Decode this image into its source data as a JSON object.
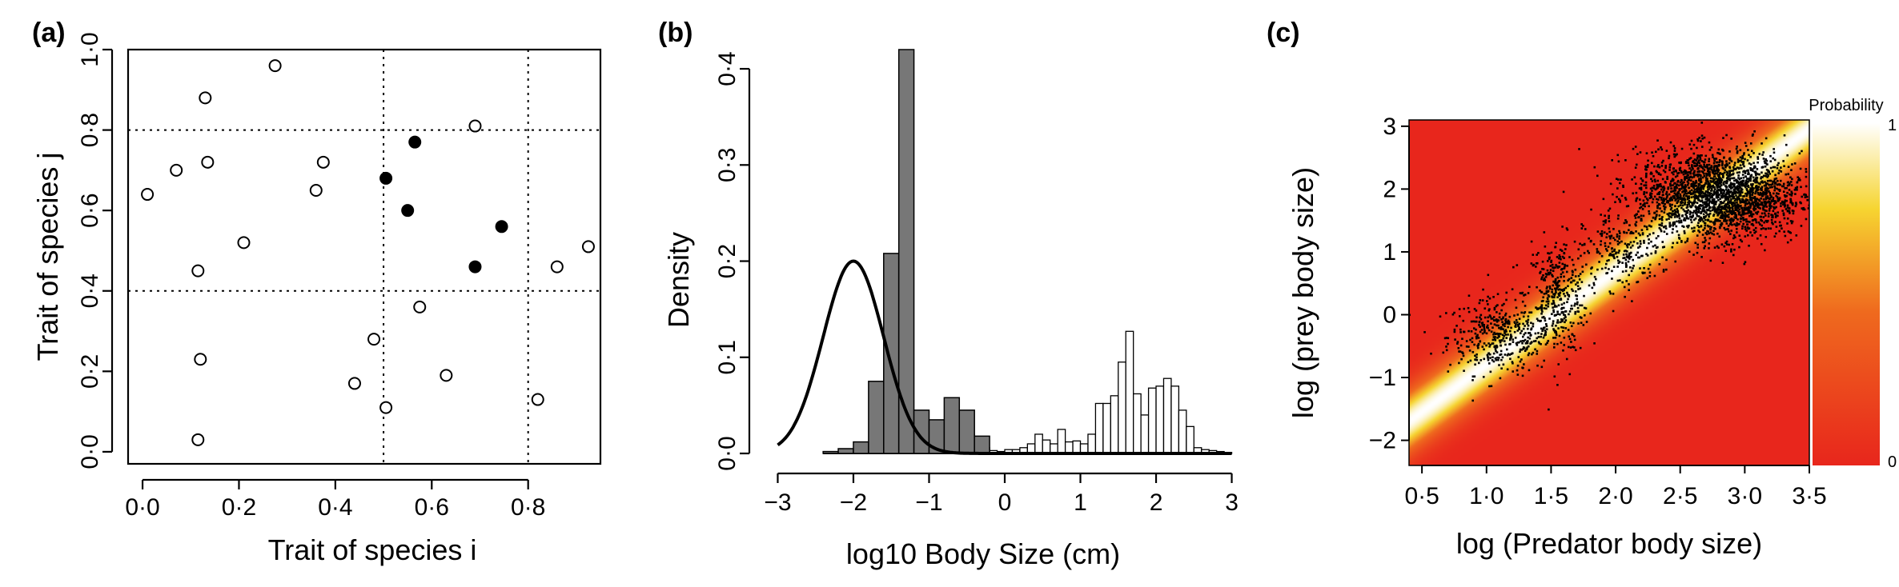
{
  "colors": {
    "black": "#000000",
    "bar_gray": "#777777",
    "heat_low": "#e8261c",
    "heat_mid": "#f6d531",
    "heat_high": "#ffffff"
  },
  "panels": {
    "a": {
      "label": "(a)",
      "chart_data": {
        "type": "scatter",
        "xlabel": "Trait of species i",
        "ylabel": "Trait of species j",
        "xlim": [
          -0.03,
          0.95
        ],
        "ylim": [
          -0.03,
          1.0
        ],
        "xticks": [
          0.0,
          0.2,
          0.4,
          0.6,
          0.8
        ],
        "xtick_labels": [
          "0·0",
          "0·2",
          "0·4",
          "0·6",
          "0·8"
        ],
        "yticks": [
          0.0,
          0.2,
          0.4,
          0.6,
          0.8,
          1.0
        ],
        "ytick_labels": [
          "0·0",
          "0·2",
          "0·4",
          "0·6",
          "0·8",
          "1·0"
        ],
        "dotted_vlines": [
          0.5,
          0.8
        ],
        "dotted_hlines": [
          0.4,
          0.8
        ],
        "open_points": [
          {
            "x": 0.01,
            "y": 0.64
          },
          {
            "x": 0.07,
            "y": 0.7
          },
          {
            "x": 0.115,
            "y": 0.45
          },
          {
            "x": 0.12,
            "y": 0.23
          },
          {
            "x": 0.115,
            "y": 0.03
          },
          {
            "x": 0.13,
            "y": 0.88
          },
          {
            "x": 0.135,
            "y": 0.72
          },
          {
            "x": 0.21,
            "y": 0.52
          },
          {
            "x": 0.275,
            "y": 0.96
          },
          {
            "x": 0.36,
            "y": 0.65
          },
          {
            "x": 0.375,
            "y": 0.72
          },
          {
            "x": 0.44,
            "y": 0.17
          },
          {
            "x": 0.48,
            "y": 0.28
          },
          {
            "x": 0.505,
            "y": 0.11
          },
          {
            "x": 0.575,
            "y": 0.36
          },
          {
            "x": 0.63,
            "y": 0.19
          },
          {
            "x": 0.69,
            "y": 0.81
          },
          {
            "x": 0.82,
            "y": 0.13
          },
          {
            "x": 0.86,
            "y": 0.46
          },
          {
            "x": 0.925,
            "y": 0.51
          }
        ],
        "filled_points": [
          {
            "x": 0.505,
            "y": 0.68
          },
          {
            "x": 0.55,
            "y": 0.6
          },
          {
            "x": 0.565,
            "y": 0.77
          },
          {
            "x": 0.69,
            "y": 0.46
          },
          {
            "x": 0.745,
            "y": 0.56
          }
        ]
      }
    },
    "b": {
      "label": "(b)",
      "chart_data": {
        "type": "bar",
        "xlabel": "log10 Body Size (cm)",
        "ylabel": "Density",
        "xlim": [
          -3.1,
          3.1
        ],
        "ylim": [
          0,
          0.42
        ],
        "xticks": [
          -3,
          -2,
          -1,
          0,
          1,
          2,
          3
        ],
        "xtick_labels": [
          "−3",
          "−2",
          "−1",
          "0",
          "1",
          "2",
          "3"
        ],
        "yticks": [
          0.0,
          0.1,
          0.2,
          0.3,
          0.4
        ],
        "ytick_labels": [
          "0·0",
          "0·1",
          "0·2",
          "0·3",
          "0·4"
        ],
        "bin_width": 0.2,
        "gray_bins_left": [
          -2.4,
          -2.2,
          -2.0,
          -1.8,
          -1.6,
          -1.4,
          -1.2,
          -1.0,
          -0.8,
          -0.6,
          -0.4
        ],
        "gray_values": [
          0.002,
          0.005,
          0.012,
          0.075,
          0.208,
          0.42,
          0.045,
          0.035,
          0.058,
          0.045,
          0.018
        ],
        "white_bins_left": [
          -1.0,
          -0.9,
          -0.8,
          -0.7,
          -0.6,
          -0.5,
          -0.4,
          -0.3,
          -0.2,
          -0.1,
          0.0,
          0.1,
          0.2,
          0.3,
          0.4,
          0.5,
          0.6,
          0.7,
          0.8,
          0.9,
          1.0,
          1.1,
          1.2,
          1.3,
          1.4,
          1.5,
          1.6,
          1.7,
          1.8,
          1.9,
          2.0,
          2.1,
          2.2,
          2.3,
          2.4,
          2.5,
          2.6,
          2.7,
          2.8,
          2.9
        ],
        "white_values": [
          0.003,
          0.006,
          0.008,
          0.012,
          0.01,
          0.02,
          0.01,
          0.006,
          0.003,
          0.002,
          0.004,
          0.004,
          0.006,
          0.01,
          0.02,
          0.014,
          0.01,
          0.025,
          0.012,
          0.013,
          0.01,
          0.02,
          0.052,
          0.052,
          0.06,
          0.095,
          0.127,
          0.062,
          0.04,
          0.068,
          0.07,
          0.078,
          0.07,
          0.045,
          0.028,
          0.006,
          0.004,
          0.003,
          0.002,
          0.001
        ],
        "curve": {
          "mean": -2.0,
          "sd": 0.4,
          "peak": 0.2,
          "x_range": [
            -3.0,
            3.0
          ]
        }
      }
    },
    "c": {
      "label": "(c)",
      "chart_data": {
        "type": "heatmap",
        "xlabel": "log (Predator body size)",
        "ylabel": "log (prey body size)",
        "xlim": [
          0.4,
          3.5
        ],
        "ylim": [
          -2.4,
          3.1
        ],
        "xticks": [
          0.5,
          1.0,
          1.5,
          2.0,
          2.5,
          3.0,
          3.5
        ],
        "xtick_labels": [
          "0·5",
          "1·0",
          "1·5",
          "2·0",
          "2·5",
          "3·0",
          "3·5"
        ],
        "yticks": [
          -2,
          -1,
          0,
          1,
          2,
          3
        ],
        "ytick_labels": [
          "−2",
          "−1",
          "0",
          "1",
          "2",
          "3"
        ],
        "ridge": {
          "slope": 1.5,
          "intercept": -2.3,
          "width": 0.35
        },
        "clusters": [
          {
            "cx": 1.1,
            "cy": -0.35,
            "sx": 0.2,
            "sy": 0.3,
            "n": 420
          },
          {
            "cx": 1.55,
            "cy": 0.3,
            "sx": 0.12,
            "sy": 0.45,
            "n": 380
          },
          {
            "cx": 2.05,
            "cy": 1.0,
            "sx": 0.15,
            "sy": 0.3,
            "n": 220
          },
          {
            "cx": 2.8,
            "cy": 1.9,
            "sx": 0.32,
            "sy": 0.35,
            "n": 2400
          }
        ],
        "colorbar": {
          "title": "Probability",
          "max_label": "1",
          "min_label": "0"
        }
      }
    }
  }
}
